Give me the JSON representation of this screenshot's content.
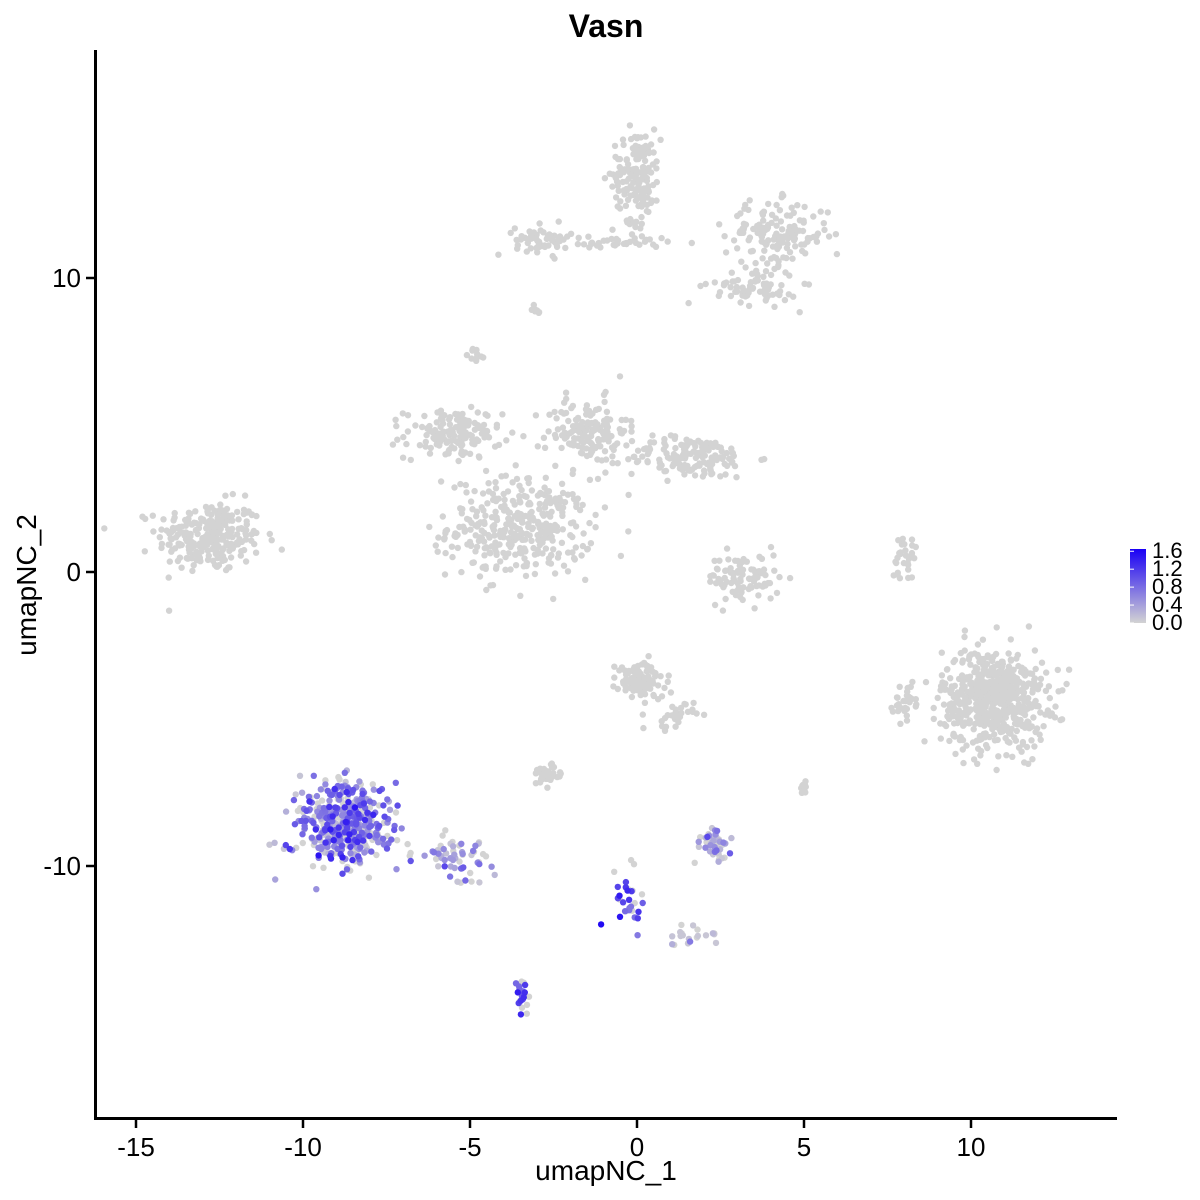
{
  "chart_data": {
    "type": "scatter",
    "title": "Vasn",
    "xlabel": "umapNC_1",
    "ylabel": "umapNC_2",
    "xlim": [
      -16.5,
      14.3
    ],
    "ylim": [
      -18.5,
      17.8
    ],
    "xticks": [
      -15,
      -10,
      -5,
      0,
      5,
      10
    ],
    "yticks": [
      -10,
      0,
      10
    ],
    "xtick_labels": [
      "-15",
      "-10",
      "-5",
      "0",
      "5",
      "10"
    ],
    "ytick_labels": [
      "-10",
      "0",
      "10"
    ],
    "grid": false,
    "legend_position": "right",
    "color_scale": {
      "low": "#d3d3d3",
      "high": "#1a00f5",
      "min": 0.0,
      "max": 1.65,
      "breaks": [
        0.0,
        0.4,
        0.8,
        1.2,
        1.6
      ],
      "labels": [
        "0.0",
        "0.4",
        "0.8",
        "1.2",
        "1.6"
      ]
    },
    "clusters": [
      {
        "center": [
          -12.8,
          1.2
        ],
        "spread": [
          1.3,
          1.0
        ],
        "n": 260,
        "expr": 0.0
      },
      {
        "center": [
          -3.5,
          1.5
        ],
        "spread": [
          1.8,
          1.4
        ],
        "n": 360,
        "expr": 0.0
      },
      {
        "center": [
          -5.5,
          4.7
        ],
        "spread": [
          1.2,
          0.7
        ],
        "n": 150,
        "expr": 0.0
      },
      {
        "center": [
          -1.5,
          4.8
        ],
        "spread": [
          1.0,
          0.9
        ],
        "n": 140,
        "expr": 0.0
      },
      {
        "center": [
          1.6,
          3.9
        ],
        "spread": [
          1.6,
          0.6
        ],
        "n": 160,
        "expr": 0.0
      },
      {
        "center": [
          -4.8,
          7.4
        ],
        "spread": [
          0.2,
          0.2
        ],
        "n": 10,
        "expr": 0.0
      },
      {
        "center": [
          0.0,
          13.5
        ],
        "spread": [
          0.6,
          1.3
        ],
        "n": 160,
        "expr": 0.0
      },
      {
        "center": [
          -2.8,
          11.3
        ],
        "spread": [
          0.7,
          0.4
        ],
        "n": 60,
        "expr": 0.0
      },
      {
        "center": [
          4.2,
          11.5
        ],
        "spread": [
          1.3,
          0.9
        ],
        "n": 150,
        "expr": 0.0
      },
      {
        "center": [
          3.5,
          9.7
        ],
        "spread": [
          1.1,
          0.5
        ],
        "n": 70,
        "expr": 0.0
      },
      {
        "center": [
          -0.6,
          11.2
        ],
        "spread": [
          1.3,
          0.2
        ],
        "n": 40,
        "expr": 0.0
      },
      {
        "center": [
          -3.0,
          8.8
        ],
        "spread": [
          0.2,
          0.3
        ],
        "n": 8,
        "expr": 0.0
      },
      {
        "center": [
          3.2,
          -0.2
        ],
        "spread": [
          0.9,
          0.7
        ],
        "n": 90,
        "expr": 0.0
      },
      {
        "center": [
          8.0,
          0.5
        ],
        "spread": [
          0.3,
          0.6
        ],
        "n": 30,
        "expr": 0.0
      },
      {
        "center": [
          10.7,
          -4.3
        ],
        "spread": [
          1.3,
          1.4
        ],
        "n": 620,
        "expr": 0.0
      },
      {
        "center": [
          8.0,
          -4.4
        ],
        "spread": [
          0.3,
          0.5
        ],
        "n": 30,
        "expr": 0.0
      },
      {
        "center": [
          0.1,
          -3.7
        ],
        "spread": [
          0.6,
          0.5
        ],
        "n": 120,
        "expr": 0.0
      },
      {
        "center": [
          1.1,
          -4.9
        ],
        "spread": [
          0.5,
          0.4
        ],
        "n": 30,
        "expr": 0.0
      },
      {
        "center": [
          -2.7,
          -6.9
        ],
        "spread": [
          0.4,
          0.3
        ],
        "n": 40,
        "expr": 0.0
      },
      {
        "center": [
          5.0,
          -7.3
        ],
        "spread": [
          0.1,
          0.2
        ],
        "n": 15,
        "expr": 0.0
      },
      {
        "center": [
          -8.8,
          -8.6
        ],
        "spread": [
          1.1,
          1.2
        ],
        "n": 460,
        "expr": 0.7
      },
      {
        "center": [
          -5.4,
          -9.7
        ],
        "spread": [
          1.1,
          0.6
        ],
        "n": 60,
        "expr": 0.6
      },
      {
        "center": [
          2.3,
          -9.3
        ],
        "spread": [
          0.4,
          0.4
        ],
        "n": 45,
        "expr": 0.4
      },
      {
        "center": [
          -0.3,
          -11.0
        ],
        "spread": [
          0.4,
          1.1
        ],
        "n": 30,
        "expr": 1.0
      },
      {
        "center": [
          -3.4,
          -14.4
        ],
        "spread": [
          0.2,
          0.5
        ],
        "n": 25,
        "expr": 1.0
      },
      {
        "center": [
          1.6,
          -12.4
        ],
        "spread": [
          0.8,
          0.3
        ],
        "n": 20,
        "expr": 0.2
      }
    ]
  }
}
